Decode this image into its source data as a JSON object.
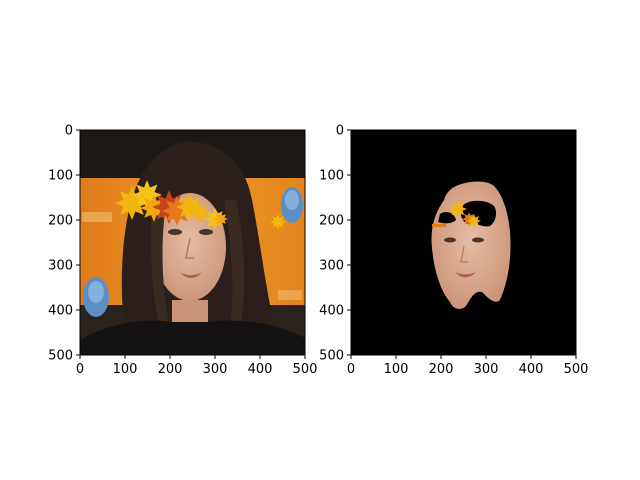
{
  "figure": {
    "background": "#ffffff"
  },
  "chart_data": [
    {
      "type": "image",
      "title": "",
      "xlabel": "",
      "ylabel": "",
      "xlim": [
        0,
        500
      ],
      "ylim": [
        500,
        0
      ],
      "xticks": [
        0,
        100,
        200,
        300,
        400,
        500
      ],
      "yticks": [
        0,
        100,
        200,
        300,
        400,
        500
      ],
      "content": "portrait photo of a woman with dark hair in front of an orange backdrop, with autumn leaf stickers across the forehead",
      "grid": false
    },
    {
      "type": "image",
      "title": "",
      "xlabel": "",
      "ylabel": "",
      "xlim": [
        0,
        500
      ],
      "ylim": [
        500,
        0
      ],
      "xticks": [
        0,
        100,
        200,
        300,
        400,
        500
      ],
      "yticks": [
        0,
        100,
        200,
        300,
        400,
        500
      ],
      "content": "segmented face region on black background with leaf overlay pieces",
      "grid": false
    }
  ],
  "colors": {
    "backdrop_orange": "#e8871f",
    "backdrop_dark": "#1a1714",
    "hair": "#2a1f1a",
    "skin": "#d9a88c",
    "skin_light": "#e3b89e",
    "mask_bg": "#000000",
    "leaf_yellow": "#f2b50f",
    "leaf_orange": "#e8781c",
    "leaf_red": "#c9431a",
    "emblem_blue": "#5d8fc7"
  }
}
